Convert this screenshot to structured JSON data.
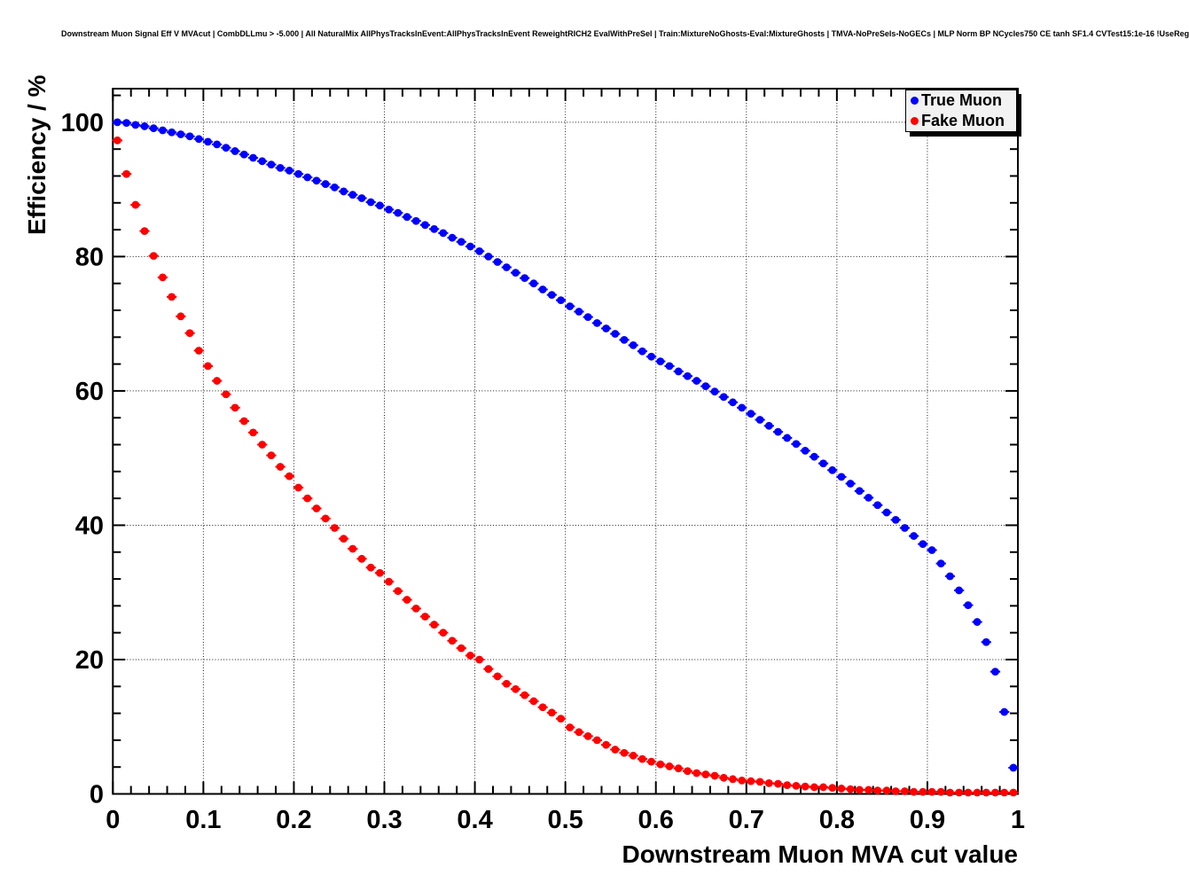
{
  "title": "Downstream Muon Signal Eff V MVAcut | CombDLLmu > -5.000 | All NaturalMix AllPhysTracksInEvent:AllPhysTracksInEvent ReweightRICH2 EvalWithPreSel | Train:MixtureNoGhosts-Eval:MixtureGhosts | TMVA-NoPreSels-NoGECs | MLP Norm BP NCycles750 CE tanh SF1.4 CVTest15:1e-16 !UseReg",
  "chart_data": {
    "type": "scatter",
    "title": "Downstream Muon Signal Eff V MVAcut",
    "xlabel": "Downstream Muon MVA cut value",
    "ylabel": "Efficiency / %",
    "xlim": [
      0,
      1
    ],
    "ylim": [
      0,
      105
    ],
    "grid": true,
    "x_major_ticks": [
      0,
      0.1,
      0.2,
      0.3,
      0.4,
      0.5,
      0.6,
      0.7,
      0.8,
      0.9,
      1
    ],
    "x_tick_labels": [
      "0",
      "0.1",
      "0.2",
      "0.3",
      "0.4",
      "0.5",
      "0.6",
      "0.7",
      "0.8",
      "0.9",
      "1"
    ],
    "x_minor_step": 0.02,
    "y_major_ticks": [
      0,
      20,
      40,
      60,
      80,
      100
    ],
    "y_tick_labels": [
      "0",
      "20",
      "40",
      "60",
      "80",
      "100"
    ],
    "y_minor_step": 4,
    "x_gridlines": [
      0.1,
      0.2,
      0.3,
      0.4,
      0.5,
      0.6,
      0.7,
      0.8,
      0.9
    ],
    "y_gridlines": [
      20,
      40,
      60,
      80,
      100
    ],
    "legend": {
      "position": "top-right",
      "entries": [
        {
          "label": "True Muon",
          "color": "#0000ff"
        },
        {
          "label": "Fake Muon",
          "color": "#ff0000"
        }
      ]
    },
    "series": [
      {
        "name": "True Muon",
        "color": "#0000ff",
        "marker": "circle",
        "points": [
          [
            0.005,
            100.0
          ],
          [
            0.015,
            99.9
          ],
          [
            0.025,
            99.6
          ],
          [
            0.035,
            99.4
          ],
          [
            0.045,
            99.1
          ],
          [
            0.055,
            98.8
          ],
          [
            0.065,
            98.5
          ],
          [
            0.075,
            98.2
          ],
          [
            0.085,
            97.9
          ],
          [
            0.095,
            97.5
          ],
          [
            0.105,
            97.1
          ],
          [
            0.115,
            96.7
          ],
          [
            0.125,
            96.2
          ],
          [
            0.135,
            95.7
          ],
          [
            0.145,
            95.2
          ],
          [
            0.155,
            94.7
          ],
          [
            0.165,
            94.2
          ],
          [
            0.175,
            93.7
          ],
          [
            0.185,
            93.2
          ],
          [
            0.195,
            92.8
          ],
          [
            0.205,
            92.3
          ],
          [
            0.215,
            91.8
          ],
          [
            0.225,
            91.3
          ],
          [
            0.235,
            90.8
          ],
          [
            0.245,
            90.3
          ],
          [
            0.255,
            89.7
          ],
          [
            0.265,
            89.2
          ],
          [
            0.275,
            88.7
          ],
          [
            0.285,
            88.1
          ],
          [
            0.295,
            87.6
          ],
          [
            0.305,
            87.0
          ],
          [
            0.315,
            86.5
          ],
          [
            0.325,
            85.9
          ],
          [
            0.335,
            85.3
          ],
          [
            0.345,
            84.7
          ],
          [
            0.355,
            84.1
          ],
          [
            0.365,
            83.5
          ],
          [
            0.375,
            82.8
          ],
          [
            0.385,
            82.2
          ],
          [
            0.395,
            81.5
          ],
          [
            0.405,
            80.8
          ],
          [
            0.415,
            80.0
          ],
          [
            0.425,
            79.2
          ],
          [
            0.435,
            78.4
          ],
          [
            0.445,
            77.6
          ],
          [
            0.455,
            76.8
          ],
          [
            0.465,
            76.0
          ],
          [
            0.475,
            75.1
          ],
          [
            0.485,
            74.3
          ],
          [
            0.495,
            73.5
          ],
          [
            0.505,
            72.6
          ],
          [
            0.515,
            71.8
          ],
          [
            0.525,
            71.0
          ],
          [
            0.535,
            70.1
          ],
          [
            0.545,
            69.3
          ],
          [
            0.555,
            68.5
          ],
          [
            0.565,
            67.6
          ],
          [
            0.575,
            66.8
          ],
          [
            0.585,
            65.9
          ],
          [
            0.595,
            65.1
          ],
          [
            0.605,
            64.4
          ],
          [
            0.615,
            63.7
          ],
          [
            0.625,
            62.9
          ],
          [
            0.635,
            62.2
          ],
          [
            0.645,
            61.5
          ],
          [
            0.655,
            60.7
          ],
          [
            0.665,
            59.9
          ],
          [
            0.675,
            59.1
          ],
          [
            0.685,
            58.3
          ],
          [
            0.695,
            57.5
          ],
          [
            0.705,
            56.6
          ],
          [
            0.715,
            55.7
          ],
          [
            0.725,
            54.8
          ],
          [
            0.735,
            53.9
          ],
          [
            0.745,
            53.0
          ],
          [
            0.755,
            52.1
          ],
          [
            0.765,
            51.1
          ],
          [
            0.775,
            50.2
          ],
          [
            0.785,
            49.2
          ],
          [
            0.795,
            48.2
          ],
          [
            0.805,
            47.2
          ],
          [
            0.815,
            46.2
          ],
          [
            0.825,
            45.1
          ],
          [
            0.835,
            44.1
          ],
          [
            0.845,
            43.0
          ],
          [
            0.855,
            41.9
          ],
          [
            0.865,
            40.8
          ],
          [
            0.875,
            39.6
          ],
          [
            0.885,
            38.4
          ],
          [
            0.895,
            37.2
          ],
          [
            0.905,
            36.3
          ],
          [
            0.915,
            34.3
          ],
          [
            0.925,
            32.4
          ],
          [
            0.935,
            30.3
          ],
          [
            0.945,
            28.1
          ],
          [
            0.955,
            25.6
          ],
          [
            0.965,
            22.6
          ],
          [
            0.975,
            18.2
          ],
          [
            0.985,
            12.2
          ],
          [
            0.995,
            3.9
          ]
        ]
      },
      {
        "name": "Fake Muon",
        "color": "#ff0000",
        "marker": "circle",
        "points": [
          [
            0.005,
            97.3
          ],
          [
            0.015,
            92.3
          ],
          [
            0.025,
            87.7
          ],
          [
            0.035,
            83.8
          ],
          [
            0.045,
            80.1
          ],
          [
            0.055,
            76.9
          ],
          [
            0.065,
            74.0
          ],
          [
            0.075,
            71.1
          ],
          [
            0.085,
            68.6
          ],
          [
            0.095,
            66.0
          ],
          [
            0.105,
            63.7
          ],
          [
            0.115,
            61.5
          ],
          [
            0.125,
            59.5
          ],
          [
            0.135,
            57.5
          ],
          [
            0.145,
            55.5
          ],
          [
            0.155,
            53.8
          ],
          [
            0.165,
            52.0
          ],
          [
            0.175,
            50.4
          ],
          [
            0.185,
            48.7
          ],
          [
            0.195,
            47.3
          ],
          [
            0.205,
            45.6
          ],
          [
            0.215,
            44.0
          ],
          [
            0.225,
            42.5
          ],
          [
            0.235,
            41.0
          ],
          [
            0.245,
            39.6
          ],
          [
            0.255,
            38.0
          ],
          [
            0.265,
            36.5
          ],
          [
            0.275,
            35.0
          ],
          [
            0.285,
            33.7
          ],
          [
            0.295,
            32.9
          ],
          [
            0.305,
            31.6
          ],
          [
            0.315,
            30.2
          ],
          [
            0.325,
            28.9
          ],
          [
            0.335,
            27.6
          ],
          [
            0.345,
            26.4
          ],
          [
            0.355,
            25.2
          ],
          [
            0.365,
            24.0
          ],
          [
            0.375,
            22.8
          ],
          [
            0.385,
            21.7
          ],
          [
            0.395,
            20.6
          ],
          [
            0.405,
            20.0
          ],
          [
            0.415,
            18.6
          ],
          [
            0.425,
            17.5
          ],
          [
            0.435,
            16.4
          ],
          [
            0.445,
            15.6
          ],
          [
            0.455,
            14.7
          ],
          [
            0.465,
            13.8
          ],
          [
            0.475,
            12.9
          ],
          [
            0.485,
            12.1
          ],
          [
            0.495,
            11.2
          ],
          [
            0.505,
            9.9
          ],
          [
            0.515,
            9.2
          ],
          [
            0.525,
            8.6
          ],
          [
            0.535,
            8.0
          ],
          [
            0.545,
            7.3
          ],
          [
            0.555,
            6.6
          ],
          [
            0.565,
            6.1
          ],
          [
            0.575,
            5.7
          ],
          [
            0.585,
            5.2
          ],
          [
            0.595,
            4.8
          ],
          [
            0.605,
            4.4
          ],
          [
            0.615,
            4.1
          ],
          [
            0.625,
            3.8
          ],
          [
            0.635,
            3.4
          ],
          [
            0.645,
            3.1
          ],
          [
            0.655,
            2.9
          ],
          [
            0.665,
            2.7
          ],
          [
            0.675,
            2.4
          ],
          [
            0.685,
            2.2
          ],
          [
            0.695,
            2.0
          ],
          [
            0.705,
            1.9
          ],
          [
            0.715,
            1.8
          ],
          [
            0.725,
            1.6
          ],
          [
            0.735,
            1.5
          ],
          [
            0.745,
            1.3
          ],
          [
            0.755,
            1.2
          ],
          [
            0.765,
            1.1
          ],
          [
            0.775,
            1.0
          ],
          [
            0.785,
            1.0
          ],
          [
            0.795,
            0.9
          ],
          [
            0.805,
            0.8
          ],
          [
            0.815,
            0.7
          ],
          [
            0.825,
            0.6
          ],
          [
            0.835,
            0.6
          ],
          [
            0.845,
            0.5
          ],
          [
            0.855,
            0.5
          ],
          [
            0.865,
            0.4
          ],
          [
            0.875,
            0.4
          ],
          [
            0.885,
            0.3
          ],
          [
            0.895,
            0.3
          ],
          [
            0.905,
            0.3
          ],
          [
            0.915,
            0.3
          ],
          [
            0.925,
            0.2
          ],
          [
            0.935,
            0.2
          ],
          [
            0.945,
            0.2
          ],
          [
            0.955,
            0.2
          ],
          [
            0.965,
            0.2
          ],
          [
            0.975,
            0.2
          ],
          [
            0.985,
            0.2
          ],
          [
            0.995,
            0.2
          ]
        ]
      }
    ]
  }
}
